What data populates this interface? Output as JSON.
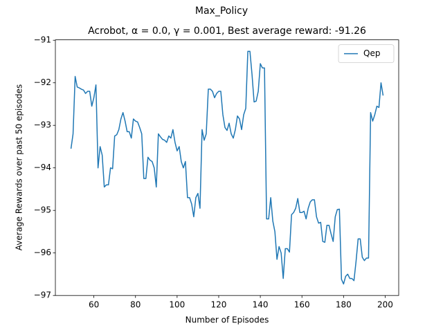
{
  "chart_data": {
    "type": "line",
    "suptitle": "Max_Policy",
    "title": "Acrobot, α = 0.0, γ = 0.001,  Best average reward: -91.26",
    "xlabel": "Number of Episodes",
    "ylabel": "Average Rewards over past 50 episodes",
    "xlim": [
      41.5,
      206.5
    ],
    "ylim": [
      -97.0,
      -90.99
    ],
    "xticks": [
      60,
      80,
      100,
      120,
      140,
      160,
      180,
      200
    ],
    "yticks": [
      {
        "value": -97,
        "label": "−97"
      },
      {
        "value": -96,
        "label": "−96"
      },
      {
        "value": -95,
        "label": "−95"
      },
      {
        "value": -94,
        "label": "−94"
      },
      {
        "value": -93,
        "label": "−93"
      },
      {
        "value": -92,
        "label": "−92"
      },
      {
        "value": -91,
        "label": "−91"
      }
    ],
    "legend": "upper right",
    "x": [
      49,
      50,
      51,
      52,
      53,
      54,
      55,
      56,
      57,
      58,
      59,
      60,
      61,
      62,
      63,
      64,
      65,
      66,
      67,
      68,
      69,
      70,
      71,
      72,
      73,
      74,
      75,
      76,
      77,
      78,
      79,
      80,
      81,
      82,
      83,
      84,
      85,
      86,
      87,
      88,
      89,
      90,
      91,
      92,
      93,
      94,
      95,
      96,
      97,
      98,
      99,
      100,
      101,
      102,
      103,
      104,
      105,
      106,
      107,
      108,
      109,
      110,
      111,
      112,
      113,
      114,
      115,
      116,
      117,
      118,
      119,
      120,
      121,
      122,
      123,
      124,
      125,
      126,
      127,
      128,
      129,
      130,
      131,
      132,
      133,
      134,
      135,
      136,
      137,
      138,
      139,
      140,
      141,
      142,
      143,
      144,
      145,
      146,
      147,
      148,
      149,
      150,
      151,
      152,
      153,
      154,
      155,
      156,
      157,
      158,
      159,
      160,
      161,
      162,
      163,
      164,
      165,
      166,
      167,
      168,
      169,
      170,
      171,
      172,
      173,
      174,
      175,
      176,
      177,
      178,
      179,
      180,
      181,
      182,
      183,
      184,
      185,
      186,
      187,
      188,
      189,
      190,
      191,
      192,
      193,
      194,
      195,
      196,
      197,
      198,
      199
    ],
    "series": [
      {
        "name": "Qep",
        "color": "#1f77b4",
        "values": [
          -93.55,
          -93.2,
          -91.85,
          -92.1,
          -92.12,
          -92.15,
          -92.17,
          -92.25,
          -92.2,
          -92.2,
          -92.55,
          -92.35,
          -92.05,
          -94.0,
          -93.5,
          -93.7,
          -94.45,
          -94.4,
          -94.4,
          -94.0,
          -94.02,
          -93.25,
          -93.22,
          -93.1,
          -92.85,
          -92.7,
          -92.9,
          -93.15,
          -93.15,
          -93.3,
          -92.85,
          -92.9,
          -92.92,
          -93.05,
          -93.2,
          -94.25,
          -94.25,
          -93.75,
          -93.82,
          -93.85,
          -94.0,
          -94.45,
          -93.2,
          -93.27,
          -93.33,
          -93.35,
          -93.4,
          -93.25,
          -93.3,
          -93.1,
          -93.4,
          -93.6,
          -93.5,
          -93.85,
          -94.0,
          -93.85,
          -94.7,
          -94.7,
          -94.85,
          -95.15,
          -94.7,
          -94.6,
          -94.95,
          -93.1,
          -93.35,
          -93.2,
          -92.15,
          -92.15,
          -92.2,
          -92.35,
          -92.25,
          -92.2,
          -92.2,
          -92.75,
          -93.05,
          -93.12,
          -92.95,
          -93.2,
          -93.3,
          -93.1,
          -92.78,
          -92.85,
          -93.1,
          -92.75,
          -92.6,
          -91.26,
          -91.26,
          -91.8,
          -92.45,
          -92.43,
          -92.2,
          -91.55,
          -91.65,
          -91.65,
          -95.2,
          -95.2,
          -94.7,
          -95.25,
          -95.5,
          -96.15,
          -95.85,
          -96.0,
          -96.6,
          -95.9,
          -95.9,
          -95.98,
          -95.1,
          -95.05,
          -94.95,
          -94.72,
          -95.05,
          -95.05,
          -95.02,
          -95.2,
          -94.95,
          -94.8,
          -94.75,
          -94.75,
          -95.15,
          -95.3,
          -95.28,
          -95.73,
          -95.75,
          -95.35,
          -95.35,
          -95.55,
          -95.73,
          -95.15,
          -94.98,
          -94.97,
          -96.62,
          -96.73,
          -96.55,
          -96.5,
          -96.6,
          -96.6,
          -96.65,
          -96.2,
          -95.67,
          -95.67,
          -96.1,
          -96.18,
          -96.12,
          -96.12,
          -92.7,
          -92.9,
          -92.75,
          -92.55,
          -92.58,
          -92.0,
          -92.3
        ]
      }
    ]
  }
}
